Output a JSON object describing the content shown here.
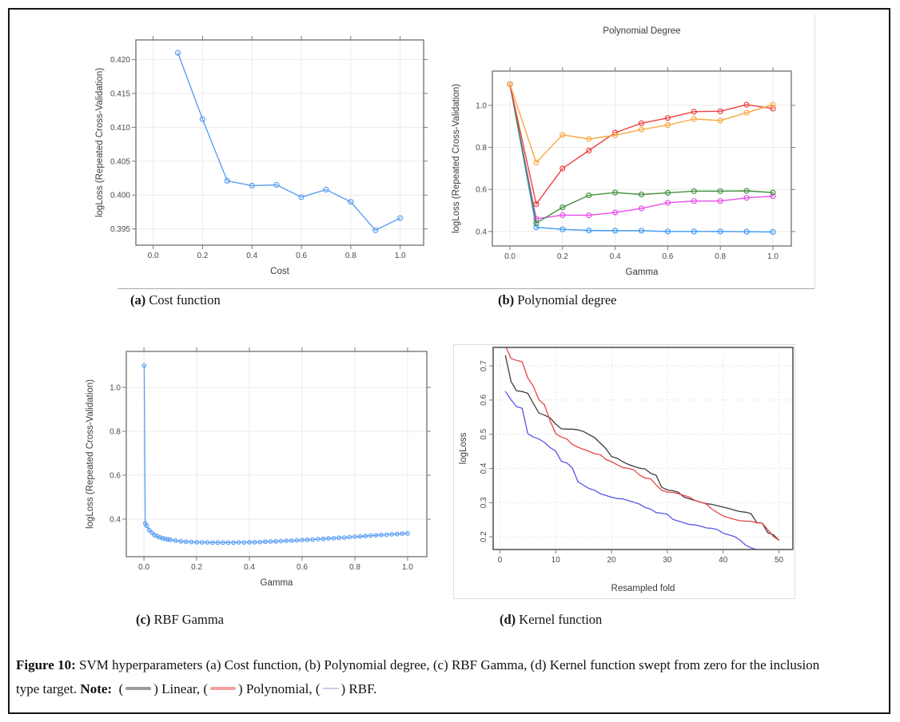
{
  "page": {
    "background": "#ffffff",
    "border_color": "#151515"
  },
  "subcaptions": [
    {
      "tag": "(a)",
      "label": "Cost function"
    },
    {
      "tag": "(b)",
      "label": "Polynomial degree"
    },
    {
      "tag": "(c)",
      "label": "RBF Gamma"
    },
    {
      "tag": "(d)",
      "label": "Kernel function"
    }
  ],
  "figure_caption": {
    "line1_bold": "Figure 10:",
    "line1_text": " SVM hyperparameters (a) Cost function, (b) Polynomial degree, (c) RBF Gamma, (d) Kernel function swept from zero for the inclusion",
    "line2_text": "type target. ",
    "note_bold": "Note:",
    "legend": [
      {
        "name": "linear",
        "label": "Linear",
        "color": "#9b9b9b",
        "width": 32,
        "thickness": 4
      },
      {
        "name": "polynomial",
        "label": "Polynomial",
        "color": "#f2a0a0",
        "width": 32,
        "thickness": 4
      },
      {
        "name": "rbf",
        "label": "RBF",
        "color": "#c6c9ec",
        "width": 20,
        "thickness": 2
      }
    ]
  },
  "chart_data": [
    {
      "id": "chart-a-cost",
      "type": "line",
      "title": "",
      "xlabel": "Cost",
      "ylabel": "logLoss (Repeated Cross-Validation)",
      "xlim": [
        -0.07,
        1.095
      ],
      "ylim": [
        0.3926,
        0.4229
      ],
      "grid": {
        "color": "#ebebeb",
        "dash": ""
      },
      "tick_sides": "all",
      "ytick_rotate": false,
      "xticks": {
        "values": [
          0,
          0.2,
          0.4,
          0.6,
          0.8,
          1.0
        ],
        "labels": [
          "0.0",
          "0.2",
          "0.4",
          "0.6",
          "0.8",
          "1.0"
        ]
      },
      "yticks": {
        "values": [
          0.395,
          0.4,
          0.405,
          0.41,
          0.415,
          0.42
        ],
        "labels": [
          "0.395",
          "0.400",
          "0.405",
          "0.410",
          "0.415",
          "0.420"
        ]
      },
      "series": [
        {
          "name": "cost-sweep",
          "color": "#5b9ff0",
          "marker": true,
          "marker_r": 3,
          "lw": 1.4,
          "x": [
            0.1,
            0.2,
            0.3,
            0.4,
            0.5,
            0.6,
            0.7,
            0.8,
            0.9,
            1.0
          ],
          "y": [
            0.421,
            0.4112,
            0.4021,
            0.4014,
            0.4015,
            0.3997,
            0.4008,
            0.399,
            0.3948,
            0.3966
          ]
        }
      ]
    },
    {
      "id": "chart-b-poly",
      "type": "line",
      "title": "Polynomial Degree",
      "xlabel": "Gamma",
      "ylabel": "logLoss (Repeated Cross-Validation)",
      "xlim": [
        -0.067,
        1.07
      ],
      "ylim": [
        0.331,
        1.163
      ],
      "grid": {
        "color": "#ebebeb",
        "dash": ""
      },
      "tick_sides": "all",
      "ytick_rotate": false,
      "xticks": {
        "values": [
          0,
          0.2,
          0.4,
          0.6,
          0.8,
          1.0
        ],
        "labels": [
          "0.0",
          "0.2",
          "0.4",
          "0.6",
          "0.8",
          "1.0"
        ]
      },
      "yticks": {
        "values": [
          0.4,
          0.6,
          0.8,
          1.0
        ],
        "labels": [
          "0.4",
          "0.6",
          "0.8",
          "1.0"
        ]
      },
      "series": [
        {
          "name": "blue",
          "color": "#3e9af5",
          "marker": true,
          "marker_r": 3,
          "lw": 1.4,
          "x": [
            0,
            0.1,
            0.2,
            0.3,
            0.4,
            0.5,
            0.6,
            0.7,
            0.8,
            0.9,
            1.0
          ],
          "y": [
            1.1,
            0.42,
            0.41,
            0.405,
            0.404,
            0.404,
            0.4,
            0.4,
            0.4,
            0.399,
            0.398
          ]
        },
        {
          "name": "magenta",
          "color": "#e94de9",
          "marker": true,
          "marker_r": 3,
          "lw": 1.4,
          "x": [
            0,
            0.1,
            0.2,
            0.3,
            0.4,
            0.5,
            0.6,
            0.7,
            0.8,
            0.9,
            1.0
          ],
          "y": [
            1.1,
            0.46,
            0.478,
            0.477,
            0.49,
            0.51,
            0.537,
            0.545,
            0.545,
            0.56,
            0.568
          ]
        },
        {
          "name": "green",
          "color": "#41913f",
          "marker": true,
          "marker_r": 3,
          "lw": 1.4,
          "x": [
            0,
            0.1,
            0.2,
            0.3,
            0.4,
            0.5,
            0.6,
            0.7,
            0.8,
            0.9,
            1.0
          ],
          "y": [
            1.1,
            0.44,
            0.515,
            0.572,
            0.585,
            0.576,
            0.584,
            0.592,
            0.592,
            0.593,
            0.585
          ]
        },
        {
          "name": "red",
          "color": "#ef4143",
          "marker": true,
          "marker_r": 3,
          "lw": 1.4,
          "x": [
            0,
            0.1,
            0.2,
            0.3,
            0.4,
            0.5,
            0.6,
            0.7,
            0.8,
            0.9,
            1.0
          ],
          "y": [
            1.1,
            0.53,
            0.7,
            0.785,
            0.87,
            0.915,
            0.94,
            0.97,
            0.972,
            1.003,
            0.985
          ]
        },
        {
          "name": "orange",
          "color": "#f8a93f",
          "marker": true,
          "marker_r": 3,
          "lw": 1.4,
          "x": [
            0,
            0.1,
            0.2,
            0.3,
            0.4,
            0.5,
            0.6,
            0.7,
            0.8,
            0.9,
            1.0
          ],
          "y": [
            1.1,
            0.728,
            0.86,
            0.84,
            0.858,
            0.885,
            0.906,
            0.935,
            0.928,
            0.965,
            1.003
          ]
        }
      ]
    },
    {
      "id": "chart-c-rbf",
      "type": "line",
      "title": "",
      "xlabel": "Gamma",
      "ylabel": "logLoss (Repeated Cross-Validation)",
      "xlim": [
        -0.067,
        1.073
      ],
      "ylim": [
        0.229,
        1.164
      ],
      "grid": {
        "color": "#ebebeb",
        "dash": ""
      },
      "tick_sides": "all",
      "ytick_rotate": false,
      "xticks": {
        "values": [
          0,
          0.2,
          0.4,
          0.6,
          0.8,
          1.0
        ],
        "labels": [
          "0.0",
          "0.2",
          "0.4",
          "0.6",
          "0.8",
          "1.0"
        ]
      },
      "yticks": {
        "values": [
          0.4,
          0.6,
          0.8,
          1.0
        ],
        "labels": [
          "0.4",
          "0.6",
          "0.8",
          "1.0"
        ]
      },
      "series": [
        {
          "name": "rbf-gamma-sweep",
          "color": "#5b9ff0",
          "marker": true,
          "marker_r": 2.3,
          "lw": 1.3,
          "x": [
            0.001,
            0.005,
            0.01,
            0.02,
            0.03,
            0.04,
            0.05,
            0.06,
            0.07,
            0.08,
            0.09,
            0.1,
            0.12,
            0.14,
            0.16,
            0.18,
            0.2,
            0.22,
            0.24,
            0.26,
            0.28,
            0.3,
            0.32,
            0.34,
            0.36,
            0.38,
            0.4,
            0.42,
            0.44,
            0.46,
            0.48,
            0.5,
            0.52,
            0.54,
            0.56,
            0.58,
            0.6,
            0.62,
            0.64,
            0.66,
            0.68,
            0.7,
            0.72,
            0.74,
            0.76,
            0.78,
            0.8,
            0.82,
            0.84,
            0.86,
            0.88,
            0.9,
            0.92,
            0.94,
            0.96,
            0.98,
            1.0
          ],
          "y": [
            1.1,
            0.38,
            0.37,
            0.35,
            0.338,
            0.328,
            0.322,
            0.317,
            0.313,
            0.31,
            0.308,
            0.306,
            0.302,
            0.299,
            0.297,
            0.296,
            0.295,
            0.294,
            0.294,
            0.293,
            0.293,
            0.293,
            0.293,
            0.293,
            0.294,
            0.294,
            0.295,
            0.295,
            0.296,
            0.297,
            0.298,
            0.299,
            0.3,
            0.301,
            0.302,
            0.303,
            0.305,
            0.306,
            0.307,
            0.309,
            0.31,
            0.312,
            0.313,
            0.315,
            0.316,
            0.318,
            0.32,
            0.321,
            0.323,
            0.325,
            0.326,
            0.328,
            0.329,
            0.331,
            0.332,
            0.334,
            0.335
          ]
        }
      ]
    },
    {
      "id": "chart-d-kernel",
      "type": "line",
      "title": "",
      "xlabel": "Resampled fold",
      "ylabel": "logLoss",
      "xlim": [
        -1.2,
        52.5
      ],
      "ylim": [
        0.163,
        0.754
      ],
      "grid": {
        "color": "#d4d4d4",
        "dash": "1 3"
      },
      "tick_sides": "bl",
      "ytick_rotate": true,
      "xticks": {
        "values": [
          0,
          10,
          20,
          30,
          40,
          50
        ],
        "labels": [
          "0",
          "10",
          "20",
          "30",
          "40",
          "50"
        ]
      },
      "yticks": {
        "values": [
          0.2,
          0.3,
          0.4,
          0.5,
          0.6,
          0.7
        ],
        "labels": [
          "0.2",
          "0.3",
          "0.4",
          "0.5",
          "0.6",
          "0.7"
        ]
      },
      "series": [
        {
          "name": "Linear",
          "color": "#3d3d3d",
          "marker": false,
          "lw": 1.3,
          "x": [
            1,
            2,
            3,
            4,
            5,
            6,
            7,
            8,
            9,
            10,
            11,
            12,
            13,
            14,
            15,
            16,
            17,
            18,
            19,
            20,
            21,
            22,
            23,
            24,
            25,
            26,
            27,
            28,
            29,
            30,
            31,
            32,
            33,
            34,
            35,
            36,
            37,
            38,
            39,
            40,
            41,
            42,
            43,
            44,
            45,
            46,
            47,
            48,
            49,
            50
          ],
          "y": [
            0.73,
            0.655,
            0.627,
            0.625,
            0.62,
            0.59,
            0.562,
            0.556,
            0.548,
            0.53,
            0.516,
            0.515,
            0.515,
            0.513,
            0.508,
            0.499,
            0.49,
            0.474,
            0.458,
            0.435,
            0.43,
            0.42,
            0.412,
            0.406,
            0.401,
            0.399,
            0.386,
            0.38,
            0.345,
            0.337,
            0.335,
            0.33,
            0.316,
            0.311,
            0.306,
            0.301,
            0.297,
            0.295,
            0.291,
            0.287,
            0.283,
            0.278,
            0.274,
            0.272,
            0.268,
            0.242,
            0.24,
            0.212,
            0.206,
            0.19
          ]
        },
        {
          "name": "Polynomial",
          "color": "#e84545",
          "marker": false,
          "lw": 1.3,
          "x": [
            1,
            2,
            3,
            4,
            5,
            6,
            7,
            8,
            9,
            10,
            11,
            12,
            13,
            14,
            15,
            16,
            17,
            18,
            19,
            20,
            21,
            22,
            23,
            24,
            25,
            26,
            27,
            28,
            29,
            30,
            31,
            32,
            33,
            34,
            35,
            36,
            37,
            38,
            39,
            40,
            41,
            42,
            43,
            44,
            45,
            46,
            47,
            48,
            49,
            50
          ],
          "y": [
            0.758,
            0.722,
            0.716,
            0.712,
            0.665,
            0.64,
            0.601,
            0.586,
            0.54,
            0.502,
            0.492,
            0.486,
            0.47,
            0.462,
            0.456,
            0.45,
            0.443,
            0.44,
            0.426,
            0.42,
            0.411,
            0.403,
            0.4,
            0.396,
            0.381,
            0.372,
            0.37,
            0.352,
            0.336,
            0.331,
            0.33,
            0.326,
            0.321,
            0.316,
            0.306,
            0.301,
            0.296,
            0.281,
            0.271,
            0.261,
            0.256,
            0.251,
            0.247,
            0.246,
            0.245,
            0.241,
            0.24,
            0.221,
            0.201,
            0.19
          ]
        },
        {
          "name": "RBF",
          "color": "#5656e8",
          "marker": false,
          "lw": 1.3,
          "x": [
            1,
            2,
            3,
            4,
            5,
            6,
            7,
            8,
            9,
            10,
            11,
            12,
            13,
            14,
            15,
            16,
            17,
            18,
            19,
            20,
            21,
            22,
            23,
            24,
            25,
            26,
            27,
            28,
            29,
            30,
            31,
            32,
            33,
            34,
            35,
            36,
            37,
            38,
            39,
            40,
            41,
            42,
            43,
            44,
            45,
            46,
            47,
            48,
            49,
            50
          ],
          "y": [
            0.625,
            0.601,
            0.581,
            0.576,
            0.502,
            0.492,
            0.486,
            0.476,
            0.461,
            0.451,
            0.421,
            0.416,
            0.401,
            0.361,
            0.351,
            0.341,
            0.336,
            0.326,
            0.321,
            0.316,
            0.312,
            0.311,
            0.306,
            0.301,
            0.296,
            0.286,
            0.281,
            0.271,
            0.269,
            0.266,
            0.251,
            0.246,
            0.241,
            0.236,
            0.235,
            0.231,
            0.226,
            0.225,
            0.221,
            0.211,
            0.206,
            0.201,
            0.191,
            0.176,
            0.168,
            0.162,
            0.158,
            0.154,
            0.15,
            0.147
          ]
        }
      ]
    }
  ]
}
